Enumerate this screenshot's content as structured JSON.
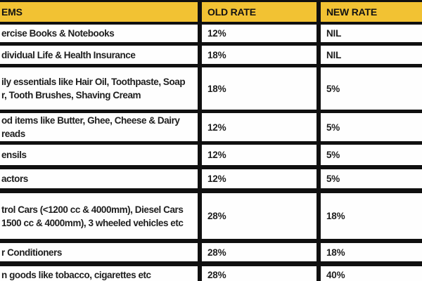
{
  "chart_data": {
    "type": "table",
    "description": "GST rate change table, cropped at left, right and bottom edges",
    "columns": [
      "EMS",
      "OLD RATE",
      "NEW RATE"
    ],
    "rows": [
      {
        "item": "ercise Books & Notebooks",
        "old_rate": "12%",
        "new_rate": "NIL"
      },
      {
        "item": "dividual Life & Health Insurance",
        "old_rate": "18%",
        "new_rate": "NIL"
      },
      {
        "item": "ily essentials like Hair Oil, Toothpaste, Soap\nr, Tooth Brushes, Shaving Cream",
        "old_rate": "18%",
        "new_rate": "5%"
      },
      {
        "item": "od items like Butter, Ghee, Cheese & Dairy\nreads",
        "old_rate": "12%",
        "new_rate": "5%"
      },
      {
        "item": "ensils",
        "old_rate": "12%",
        "new_rate": "5%"
      },
      {
        "item": "actors",
        "old_rate": "12%",
        "new_rate": "5%"
      },
      {
        "item": "trol Cars (<1200 cc & 4000mm), Diesel Cars\n1500 cc & 4000mm), 3 wheeled vehicles etc",
        "old_rate": "28%",
        "new_rate": "18%"
      },
      {
        "item": "r Conditioners",
        "old_rate": "28%",
        "new_rate": "18%"
      },
      {
        "item": "n goods like tobacco, cigarettes etc",
        "old_rate": "28%",
        "new_rate": "40%"
      }
    ]
  },
  "colors": {
    "header_bg": "#F2C233",
    "border": "#101010",
    "text": "#1E1E1E",
    "row_bg": "#FEFEFE"
  }
}
